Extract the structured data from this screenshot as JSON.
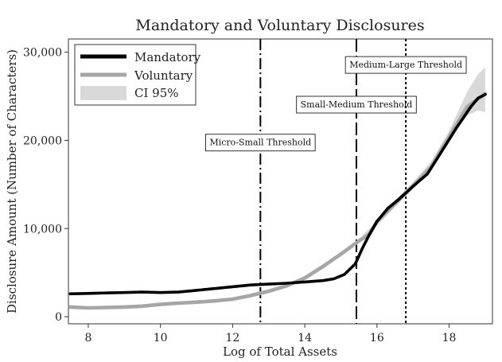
{
  "chart_data": {
    "type": "line",
    "title": "Mandatory and Voluntary Disclosures",
    "xlabel": "Log of Total Assets",
    "ylabel": "Disclosure Amount (Number of Characters)",
    "xlim": [
      7.45,
      19.2
    ],
    "ylim": [
      -800,
      31500
    ],
    "xticks": [
      8,
      10,
      12,
      14,
      16,
      18
    ],
    "xtick_labels": [
      "8",
      "10",
      "12",
      "14",
      "16",
      "18"
    ],
    "yticks": [
      0,
      10000,
      20000,
      30000
    ],
    "ytick_labels": [
      "0",
      "10,000",
      "20,000",
      "30,000"
    ],
    "grid": false,
    "legend": {
      "position": "top-left",
      "entries": [
        "Mandatory",
        "Voluntary",
        "CI 95%"
      ]
    },
    "colors": {
      "mandatory": "#000000",
      "voluntary": "#a6a6a6",
      "ci": "#d9d9d9"
    },
    "series": [
      {
        "name": "Mandatory",
        "x": [
          7.5,
          8,
          8.5,
          9,
          9.5,
          10,
          10.5,
          11,
          11.5,
          12,
          12.5,
          13,
          13.5,
          14,
          14.5,
          14.8,
          15.1,
          15.4,
          15.6,
          15.8,
          16,
          16.3,
          16.6,
          17,
          17.4,
          17.8,
          18.2,
          18.6,
          18.8,
          19.0
        ],
        "y": [
          2600,
          2650,
          2700,
          2750,
          2800,
          2750,
          2800,
          3000,
          3200,
          3400,
          3600,
          3700,
          3800,
          3950,
          4100,
          4300,
          4800,
          6000,
          7800,
          9400,
          10800,
          12300,
          13300,
          14800,
          16200,
          18800,
          21400,
          23800,
          24800,
          25200
        ]
      },
      {
        "name": "Voluntary",
        "x": [
          7.5,
          8,
          8.5,
          9,
          9.5,
          10,
          10.5,
          11,
          11.5,
          12,
          12.5,
          13,
          13.5,
          14,
          14.5,
          15,
          15.5,
          15.8,
          16,
          16.5,
          17,
          17.5,
          18,
          18.5,
          19.0
        ],
        "y": [
          1100,
          1000,
          1050,
          1100,
          1200,
          1400,
          1550,
          1650,
          1800,
          2000,
          2400,
          2900,
          3500,
          4400,
          5700,
          7100,
          8600,
          9400,
          10800,
          12800,
          14800,
          17000,
          20400,
          23800,
          25300
        ]
      }
    ],
    "ci": {
      "name": "CI 95%",
      "x": [
        15.6,
        16,
        16.5,
        17,
        17.5,
        18,
        18.5,
        18.8,
        19.0
      ],
      "lower": [
        8800,
        10300,
        12500,
        14600,
        16800,
        20000,
        22800,
        23400,
        23200
      ],
      "upper": [
        9300,
        10800,
        13200,
        15300,
        17600,
        21100,
        25500,
        27500,
        28300
      ]
    },
    "thresholds": [
      {
        "label": "Micro-Small Threshold",
        "x": 12.77,
        "dash": "dashdot",
        "label_y": 19800
      },
      {
        "label": "Small-Medium Threshold",
        "x": 15.43,
        "dash": "longdash",
        "label_y": 24100
      },
      {
        "label": "Medium-Large Threshold",
        "x": 16.8,
        "dash": "dot",
        "label_y": 28600
      }
    ]
  }
}
